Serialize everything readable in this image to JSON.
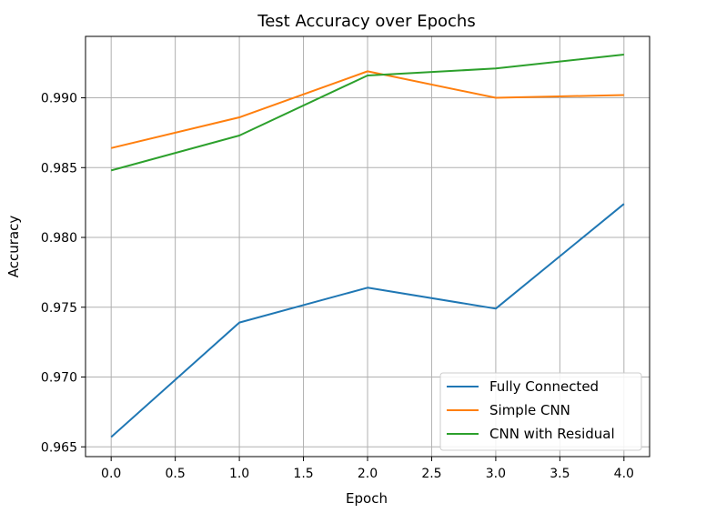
{
  "chart_data": {
    "type": "line",
    "title": "Test Accuracy over Epochs",
    "xlabel": "Epoch",
    "ylabel": "Accuracy",
    "x": [
      0,
      1,
      2,
      3,
      4
    ],
    "xlim": [
      -0.2,
      4.2
    ],
    "ylim": [
      0.9643,
      0.9944
    ],
    "xticks": [
      0.0,
      0.5,
      1.0,
      1.5,
      2.0,
      2.5,
      3.0,
      3.5,
      4.0
    ],
    "xtick_labels": [
      "0.0",
      "0.5",
      "1.0",
      "1.5",
      "2.0",
      "2.5",
      "3.0",
      "3.5",
      "4.0"
    ],
    "yticks": [
      0.965,
      0.97,
      0.975,
      0.98,
      0.985,
      0.99
    ],
    "ytick_labels": [
      "0.965",
      "0.970",
      "0.975",
      "0.980",
      "0.985",
      "0.990"
    ],
    "grid": true,
    "legend_position": "lower-right",
    "series": [
      {
        "name": "Fully Connected",
        "color": "#1f77b4",
        "values": [
          0.9657,
          0.9739,
          0.9764,
          0.9749,
          0.9824
        ]
      },
      {
        "name": "Simple CNN",
        "color": "#ff7f0e",
        "values": [
          0.9864,
          0.9886,
          0.9919,
          0.99,
          0.9902
        ]
      },
      {
        "name": "CNN with Residual",
        "color": "#2ca02c",
        "values": [
          0.9848,
          0.9873,
          0.9916,
          0.9921,
          0.9931
        ]
      }
    ]
  }
}
